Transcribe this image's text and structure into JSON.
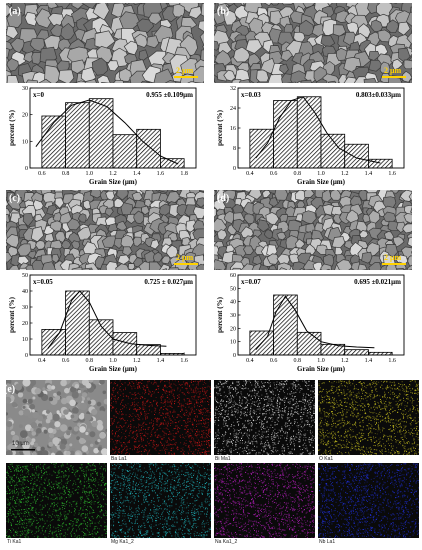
{
  "panels": [
    {
      "label": "(a)",
      "scale": "2 μm",
      "annotation": "x=0",
      "stat": "0.955 ±0.109μm"
    },
    {
      "label": "(b)",
      "scale": "2 μm",
      "annotation": "x=0.03",
      "stat": "0.803±0.033μm"
    },
    {
      "label": "(c)",
      "scale": "2 μm",
      "annotation": "x=0.05",
      "stat": "0.725 ± 0.027μm"
    },
    {
      "label": "(d)",
      "scale": "2 μm",
      "annotation": "x=0.07",
      "stat": "0.695 ±0.021μm"
    }
  ],
  "eds": {
    "label": "(e)",
    "scale": "10 μm",
    "maps": [
      {
        "name": "",
        "color": "#808080"
      },
      {
        "name": "Ba La1",
        "color": "#d01818"
      },
      {
        "name": "Bi Ma1",
        "color": "#e8e8e8"
      },
      {
        "name": "O Ka1",
        "color": "#c8c020"
      },
      {
        "name": "Ti Ka1",
        "color": "#30c030"
      },
      {
        "name": "Mg Ka1_2",
        "color": "#20b8c0"
      },
      {
        "name": "Na Ka1_2",
        "color": "#c020c8"
      },
      {
        "name": "Nb La1",
        "color": "#2030e0"
      }
    ]
  },
  "chart_data": [
    {
      "type": "bar",
      "xlabel": "Grain Size (μm)",
      "ylabel": "percent (%)",
      "xlim": [
        0.5,
        1.9
      ],
      "ylim": [
        0,
        30
      ],
      "xticks": [
        "0.6",
        "0.8",
        "1.0",
        "1.2",
        "1.4",
        "1.6",
        "1.8"
      ],
      "yticks": [
        "0",
        "10",
        "20",
        "30"
      ],
      "x": [
        0.7,
        0.9,
        1.1,
        1.3,
        1.5,
        1.7
      ],
      "values": [
        19.5,
        24.5,
        26,
        12.5,
        14.5,
        3.5
      ],
      "fit": [
        [
          0.55,
          8
        ],
        [
          0.7,
          17
        ],
        [
          0.85,
          23.5
        ],
        [
          1.0,
          25.5
        ],
        [
          1.15,
          23
        ],
        [
          1.3,
          17
        ],
        [
          1.45,
          10
        ],
        [
          1.6,
          4.5
        ],
        [
          1.75,
          1.5
        ]
      ]
    },
    {
      "type": "bar",
      "xlabel": "Grain Size (μm)",
      "ylabel": "percent (%)",
      "xlim": [
        0.3,
        1.7
      ],
      "ylim": [
        0,
        32
      ],
      "xticks": [
        "0.4",
        "0.6",
        "0.8",
        "1.0",
        "1.2",
        "1.4",
        "1.6"
      ],
      "yticks": [
        "0",
        "8",
        "16",
        "24",
        "32"
      ],
      "x": [
        0.5,
        0.7,
        0.9,
        1.1,
        1.3,
        1.5
      ],
      "values": [
        15.5,
        27,
        28.5,
        13.5,
        9.5,
        3.5
      ],
      "fit": [
        [
          0.45,
          4
        ],
        [
          0.55,
          10
        ],
        [
          0.65,
          20
        ],
        [
          0.75,
          27
        ],
        [
          0.85,
          28.5
        ],
        [
          0.95,
          22
        ],
        [
          1.05,
          14
        ],
        [
          1.15,
          8
        ],
        [
          1.3,
          4
        ],
        [
          1.5,
          2
        ]
      ]
    },
    {
      "type": "bar",
      "xlabel": "Grain Size (μm)",
      "ylabel": "percent (%)",
      "xlim": [
        0.3,
        1.7
      ],
      "ylim": [
        0,
        50
      ],
      "xticks": [
        "0.4",
        "0.6",
        "0.8",
        "1.0",
        "1.2",
        "1.4",
        "1.6"
      ],
      "yticks": [
        "0",
        "10",
        "20",
        "30",
        "40",
        "50"
      ],
      "x": [
        0.5,
        0.7,
        0.9,
        1.1,
        1.3,
        1.5
      ],
      "values": [
        16,
        40,
        22,
        14,
        6.5,
        1
      ],
      "fit": [
        [
          0.45,
          4
        ],
        [
          0.55,
          14
        ],
        [
          0.65,
          34
        ],
        [
          0.72,
          40
        ],
        [
          0.8,
          33
        ],
        [
          0.9,
          18
        ],
        [
          1.0,
          10
        ],
        [
          1.15,
          7
        ],
        [
          1.3,
          6
        ],
        [
          1.45,
          5.5
        ]
      ]
    },
    {
      "type": "bar",
      "xlabel": "Grain Size (μm)",
      "ylabel": "percent (%)",
      "xlim": [
        0.3,
        1.7
      ],
      "ylim": [
        0,
        60
      ],
      "xticks": [
        "0.4",
        "0.6",
        "0.8",
        "1.0",
        "1.2",
        "1.4",
        "1.6"
      ],
      "yticks": [
        "0",
        "10",
        "20",
        "30",
        "40",
        "50",
        "60"
      ],
      "x": [
        0.5,
        0.7,
        0.9,
        1.1,
        1.3,
        1.5
      ],
      "values": [
        18,
        45,
        17,
        8,
        4,
        2
      ],
      "fit": [
        [
          0.45,
          4
        ],
        [
          0.55,
          14
        ],
        [
          0.62,
          32
        ],
        [
          0.7,
          44
        ],
        [
          0.78,
          34
        ],
        [
          0.88,
          18
        ],
        [
          1.0,
          10
        ],
        [
          1.15,
          7
        ],
        [
          1.3,
          6
        ],
        [
          1.45,
          5.5
        ]
      ]
    }
  ]
}
